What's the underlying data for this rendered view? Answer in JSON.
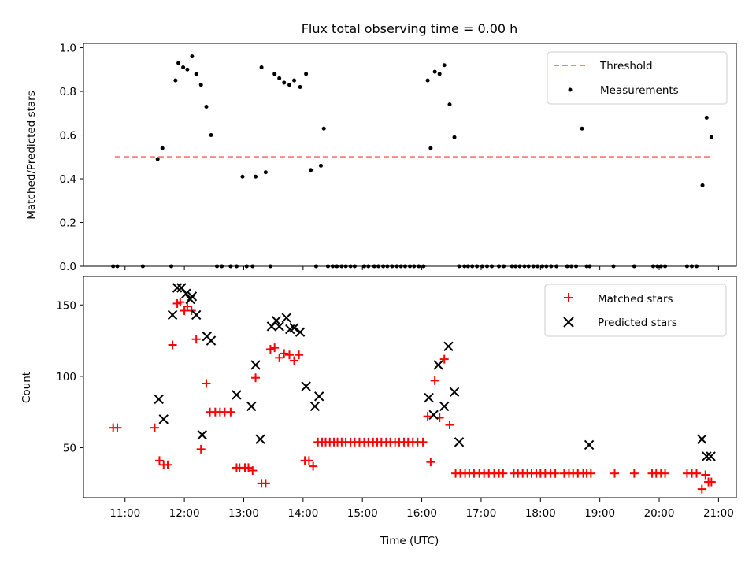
{
  "chart_data": [
    {
      "type": "scatter",
      "title": "Flux total observing time = 0.00 h",
      "xlabel": "",
      "ylabel": "Matched/Predicted stars",
      "ylim": [
        0,
        1.02
      ],
      "yticks": [
        "0.0",
        "0.2",
        "0.4",
        "0.6",
        "0.8",
        "1.0"
      ],
      "threshold": {
        "name": "Threshold",
        "y": 0.5,
        "x_start": 10.83,
        "x_end": 20.88,
        "color": "#ff7f7f"
      },
      "legend": {
        "position": "top-right",
        "entries": [
          "Threshold",
          "Measurements"
        ]
      },
      "series": [
        {
          "name": "Measurements",
          "color": "#000000",
          "x": [
            10.8,
            10.87,
            11.3,
            11.55,
            11.63,
            11.78,
            11.85,
            11.9,
            11.98,
            12.05,
            12.13,
            12.2,
            12.28,
            12.37,
            12.45,
            12.55,
            12.63,
            12.78,
            12.88,
            12.98,
            13.05,
            13.15,
            13.2,
            13.3,
            13.37,
            13.45,
            13.52,
            13.6,
            13.68,
            13.77,
            13.85,
            13.95,
            14.05,
            14.13,
            14.22,
            14.3,
            14.35,
            14.42,
            14.5,
            14.57,
            14.65,
            14.72,
            14.8,
            14.87,
            15.03,
            15.1,
            15.2,
            15.27,
            15.35,
            15.42,
            15.5,
            15.58,
            15.65,
            15.72,
            15.8,
            15.87,
            15.95,
            16.03,
            16.1,
            16.15,
            16.22,
            16.3,
            16.38,
            16.47,
            16.55,
            16.63,
            16.72,
            16.78,
            16.85,
            16.93,
            17.02,
            17.1,
            17.18,
            17.3,
            17.38,
            17.52,
            17.58,
            17.65,
            17.73,
            17.8,
            17.88,
            17.95,
            18.03,
            18.1,
            18.18,
            18.27,
            18.45,
            18.52,
            18.6,
            18.7,
            18.78,
            18.83,
            19.23,
            19.58,
            19.9,
            19.97,
            20.03,
            20.1,
            20.47,
            20.55,
            20.63,
            20.73,
            20.8,
            20.88
          ],
          "y": [
            0,
            0,
            0,
            0.49,
            0.54,
            0,
            0.85,
            0.93,
            0.91,
            0.9,
            0.96,
            0.88,
            0.83,
            0.73,
            0.6,
            0,
            0,
            0,
            0,
            0.41,
            0,
            0,
            0.41,
            0.91,
            0.43,
            0,
            0.88,
            0.86,
            0.84,
            0.83,
            0.85,
            0.82,
            0.88,
            0.44,
            0,
            0.46,
            0.63,
            0,
            0,
            0,
            0,
            0,
            0,
            0,
            0,
            0,
            0,
            0,
            0,
            0,
            0,
            0,
            0,
            0,
            0,
            0,
            0,
            0,
            0.85,
            0.54,
            0.89,
            0.88,
            0.92,
            0.74,
            0.59,
            0,
            0,
            0,
            0,
            0,
            0,
            0,
            0,
            0,
            0,
            0,
            0,
            0,
            0,
            0,
            0,
            0,
            0,
            0,
            0,
            0,
            0,
            0,
            0,
            0.63,
            0,
            0,
            0,
            0,
            0,
            0,
            0,
            0,
            0,
            0,
            0,
            0.37,
            0.68,
            0.59
          ]
        }
      ]
    },
    {
      "type": "scatter",
      "title": "",
      "xlabel": "Time (UTC)",
      "ylabel": "Count",
      "ylim": [
        15,
        170
      ],
      "yticks": [
        "50",
        "100",
        "150"
      ],
      "xlim": [
        10.3,
        21.3
      ],
      "xticks": [
        "11:00",
        "12:00",
        "13:00",
        "14:00",
        "15:00",
        "16:00",
        "17:00",
        "18:00",
        "19:00",
        "20:00",
        "21:00"
      ],
      "legend": {
        "position": "top-right",
        "entries": [
          "Matched stars",
          "Predicted stars"
        ]
      },
      "series": [
        {
          "name": "Matched stars",
          "color": "#ff0000",
          "marker": "+",
          "x": [
            10.8,
            10.87,
            11.5,
            11.58,
            11.65,
            11.72,
            11.8,
            11.88,
            11.93,
            12.0,
            12.05,
            12.12,
            12.2,
            12.28,
            12.37,
            12.43,
            12.52,
            12.6,
            12.68,
            12.78,
            12.88,
            12.93,
            13.02,
            13.08,
            13.15,
            13.2,
            13.3,
            13.37,
            13.45,
            13.52,
            13.6,
            13.68,
            13.77,
            13.85,
            13.93,
            14.03,
            14.1,
            14.17,
            14.25,
            14.32,
            14.38,
            14.45,
            14.52,
            14.58,
            14.65,
            14.72,
            14.8,
            14.87,
            14.95,
            15.03,
            15.1,
            15.18,
            15.25,
            15.32,
            15.4,
            15.47,
            15.55,
            15.62,
            15.7,
            15.77,
            15.85,
            15.93,
            16.02,
            16.1,
            16.15,
            16.22,
            16.3,
            16.38,
            16.47,
            16.57,
            16.65,
            16.73,
            16.8,
            16.88,
            16.97,
            17.05,
            17.13,
            17.22,
            17.3,
            17.37,
            17.55,
            17.62,
            17.7,
            17.78,
            17.85,
            17.93,
            18.0,
            18.08,
            18.17,
            18.25,
            18.4,
            18.48,
            18.55,
            18.63,
            18.72,
            18.78,
            18.85,
            19.25,
            19.58,
            19.88,
            19.95,
            20.03,
            20.1,
            20.47,
            20.55,
            20.63,
            20.72,
            20.78,
            20.83,
            20.88
          ],
          "y": [
            64,
            64,
            64,
            41,
            38,
            38,
            122,
            151,
            152,
            146,
            149,
            146,
            126,
            49,
            95,
            75,
            75,
            75,
            75,
            75,
            36,
            36,
            36,
            36,
            34,
            99,
            25,
            25,
            119,
            120,
            113,
            116,
            115,
            111,
            115,
            41,
            41,
            37,
            54,
            54,
            54,
            54,
            54,
            54,
            54,
            54,
            54,
            54,
            54,
            54,
            54,
            54,
            54,
            54,
            54,
            54,
            54,
            54,
            54,
            54,
            54,
            54,
            54,
            72,
            40,
            97,
            71,
            112,
            66,
            32,
            32,
            32,
            32,
            32,
            32,
            32,
            32,
            32,
            32,
            32,
            32,
            32,
            32,
            32,
            32,
            32,
            32,
            32,
            32,
            32,
            32,
            32,
            32,
            32,
            32,
            32,
            32,
            32,
            32,
            32,
            32,
            32,
            32,
            32,
            32,
            32,
            21,
            31,
            26,
            26
          ]
        },
        {
          "name": "Predicted stars",
          "color": "#000000",
          "marker": "x",
          "x": [
            11.57,
            11.65,
            11.8,
            11.88,
            11.95,
            12.03,
            12.1,
            12.13,
            12.2,
            12.3,
            12.38,
            12.45,
            12.88,
            13.13,
            13.2,
            13.28,
            13.47,
            13.55,
            13.6,
            13.72,
            13.78,
            13.85,
            13.95,
            14.05,
            14.2,
            14.27,
            16.12,
            16.2,
            16.28,
            16.38,
            16.45,
            16.55,
            16.63,
            18.82,
            20.72,
            20.8,
            20.87
          ],
          "y": [
            84,
            70,
            143,
            162,
            162,
            158,
            154,
            156,
            143,
            59,
            128,
            125,
            87,
            79,
            108,
            56,
            135,
            139,
            135,
            141,
            133,
            134,
            131,
            93,
            79,
            86,
            85,
            73,
            108,
            79,
            121,
            89,
            54,
            52,
            56,
            44,
            44
          ]
        }
      ]
    }
  ]
}
